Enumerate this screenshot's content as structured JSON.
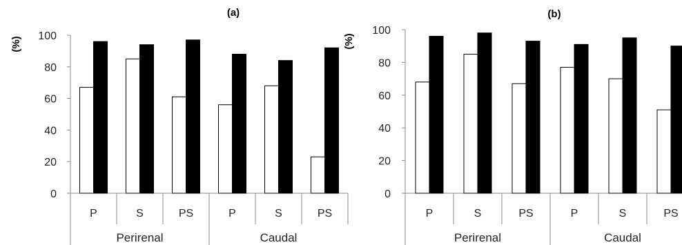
{
  "chart_data": [
    {
      "type": "bar",
      "title": "(a)",
      "ylabel": "(%)",
      "xlabel": "",
      "ylim": [
        0,
        100
      ],
      "yticks": [
        0,
        20,
        40,
        60,
        80,
        100
      ],
      "groups": [
        "Perirenal",
        "Caudal"
      ],
      "categories": [
        "P",
        "S",
        "PS",
        "P",
        "S",
        "PS"
      ],
      "series": [
        {
          "color": "#ffffff",
          "values": [
            67,
            85,
            61,
            56,
            68,
            23
          ]
        },
        {
          "color": "#000000",
          "values": [
            96,
            94,
            97,
            88,
            84,
            92
          ]
        }
      ]
    },
    {
      "type": "bar",
      "title": "(b)",
      "ylabel": "(%)",
      "xlabel": "",
      "ylim": [
        0,
        100
      ],
      "yticks": [
        0,
        20,
        40,
        60,
        80,
        100
      ],
      "groups": [
        "Perirenal",
        "Caudal"
      ],
      "categories": [
        "P",
        "S",
        "PS",
        "P",
        "S",
        "PS"
      ],
      "series": [
        {
          "color": "#ffffff",
          "values": [
            68,
            85,
            67,
            77,
            70,
            51
          ]
        },
        {
          "color": "#000000",
          "values": [
            96,
            98,
            93,
            91,
            95,
            90
          ]
        }
      ]
    }
  ]
}
